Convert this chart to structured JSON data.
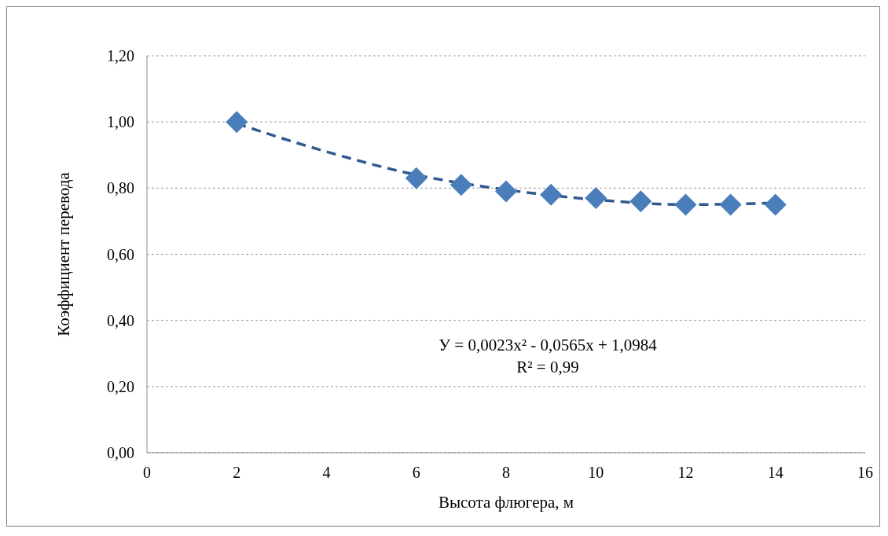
{
  "chart_data": {
    "type": "scatter",
    "xlabel": "Высота флюгера, м",
    "ylabel": "Коэффициент  перевода",
    "annotations": [
      "У = 0,0023x² - 0,0565x + 1,0984",
      "R² = 0,99"
    ],
    "xlim": [
      0,
      16
    ],
    "xticks": [
      0,
      2,
      4,
      6,
      8,
      10,
      12,
      14,
      16
    ],
    "ylim": [
      0,
      1.2
    ],
    "yticks": [
      {
        "value": 0,
        "label": "0,00"
      },
      {
        "value": 0.2,
        "label": "0,20"
      },
      {
        "value": 0.4,
        "label": "0,40"
      },
      {
        "value": 0.6,
        "label": "0,60"
      },
      {
        "value": 0.8,
        "label": "0,80"
      },
      {
        "value": 1,
        "label": "1,00"
      },
      {
        "value": 1.2,
        "label": "1,20"
      }
    ],
    "grid": "y",
    "series": [
      {
        "type": "scatter",
        "color": "#4a7ebb",
        "marker": "diamond",
        "x": [
          2,
          6,
          7,
          8,
          9,
          10,
          11,
          12,
          13,
          14
        ],
        "values": [
          1.0,
          0.83,
          0.81,
          0.79,
          0.78,
          0.77,
          0.76,
          0.75,
          0.75,
          0.75
        ]
      },
      {
        "type": "line",
        "color": "#2f5a8f",
        "marker": "none",
        "line_style": "dashed",
        "x": [
          2,
          4,
          6,
          8,
          10,
          12,
          14
        ],
        "values": [
          0.995,
          0.91,
          0.84,
          0.795,
          0.765,
          0.75,
          0.755
        ]
      }
    ]
  }
}
